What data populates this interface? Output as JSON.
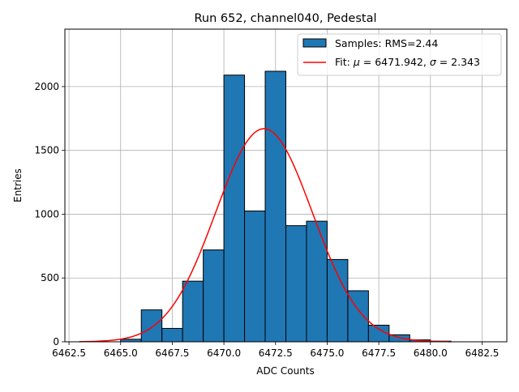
{
  "chart_data": {
    "type": "bar",
    "title": "Run 652, channel040, Pedestal",
    "xlabel": "ADC Counts",
    "ylabel": "Entries",
    "xlim": [
      6462.3,
      6483.7
    ],
    "ylim": [
      0,
      2450
    ],
    "xticks": [
      6462.5,
      6465.0,
      6467.5,
      6470.0,
      6472.5,
      6475.0,
      6477.5,
      6480.0,
      6482.5
    ],
    "yticks": [
      0,
      500,
      1000,
      1500,
      2000
    ],
    "grid": true,
    "legend_position": "top-right",
    "histogram": {
      "name": "Samples: RMS=2.44",
      "color": "#1f77b4",
      "edgecolor": "#000000",
      "bin_edges": [
        6465,
        6466,
        6467,
        6468,
        6469,
        6470,
        6471,
        6472,
        6473,
        6474,
        6475,
        6476,
        6477,
        6478,
        6479,
        6480,
        6481
      ],
      "counts": [
        20,
        250,
        105,
        475,
        720,
        2090,
        1025,
        2120,
        910,
        945,
        645,
        400,
        130,
        55,
        15,
        5
      ]
    },
    "fit": {
      "name_prefix": "Fit: ",
      "name_mu": "μ",
      "name_mid": " = 6471.942, ",
      "name_sigma": "σ",
      "name_suffix": " = 2.343",
      "color": "#ff0000",
      "mu": 6471.942,
      "sigma": 2.343,
      "amplitude": 1670,
      "x_range": [
        6463,
        6481
      ]
    }
  }
}
